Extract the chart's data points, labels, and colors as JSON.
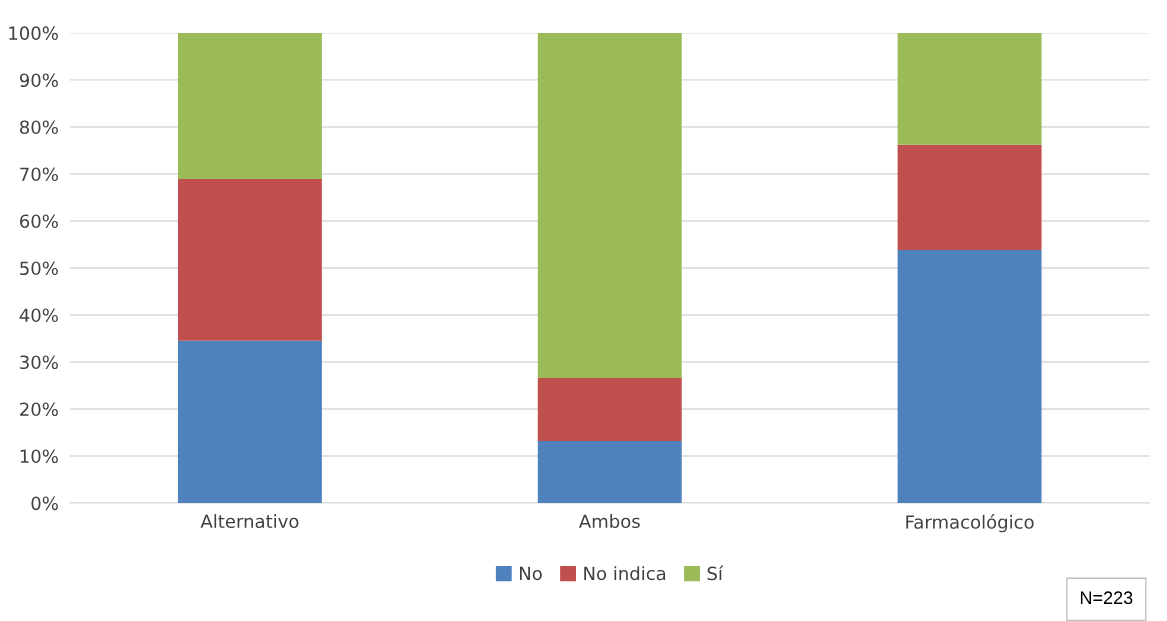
{
  "chart_data": {
    "type": "bar",
    "stacked": true,
    "categories": [
      "Alternativo",
      "Ambos",
      "Farmacológico"
    ],
    "series": [
      {
        "name": "No",
        "color": "#4f81bd",
        "values": [
          34.5,
          13.2,
          53.8
        ]
      },
      {
        "name": "No indica",
        "color": "#c0504d",
        "values": [
          34.4,
          13.4,
          22.4
        ]
      },
      {
        "name": "Sí",
        "color": "#9bbb59",
        "values": [
          31.1,
          73.4,
          23.8
        ]
      }
    ],
    "ylim": [
      0,
      100
    ],
    "yticks": [
      {
        "value": 0,
        "label": "0%"
      },
      {
        "value": 10,
        "label": "10%"
      },
      {
        "value": 20,
        "label": "20%"
      },
      {
        "value": 30,
        "label": "30%"
      },
      {
        "value": 40,
        "label": "40%"
      },
      {
        "value": 50,
        "label": "50%"
      },
      {
        "value": 60,
        "label": "60%"
      },
      {
        "value": 70,
        "label": "70%"
      },
      {
        "value": 80,
        "label": "80%"
      },
      {
        "value": 90,
        "label": "90%"
      },
      {
        "value": 100,
        "label": "100%"
      }
    ],
    "grid": "y",
    "legend": "bottom",
    "annotations": [
      "N=223"
    ]
  }
}
